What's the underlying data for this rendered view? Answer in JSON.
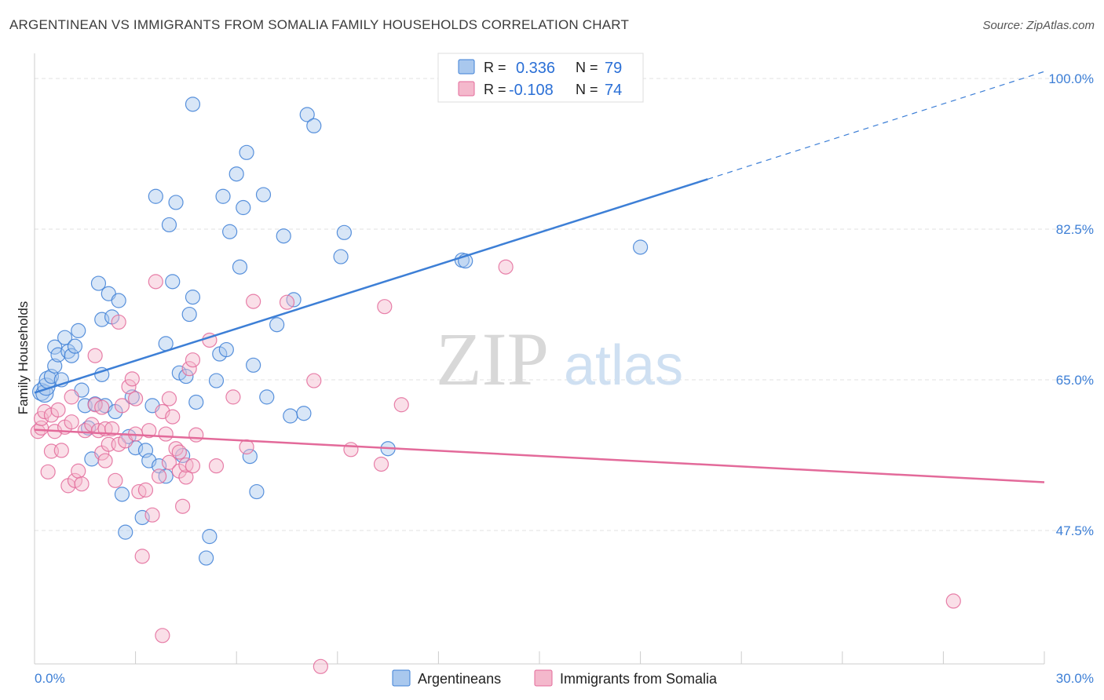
{
  "title": "ARGENTINEAN VS IMMIGRANTS FROM SOMALIA FAMILY HOUSEHOLDS CORRELATION CHART",
  "source": "Source: ZipAtlas.com",
  "colors": {
    "blue": "#3d7fd6",
    "blue_fill": "#a9c8ee",
    "pink": "#e36a9a",
    "pink_fill": "#f4b8cc",
    "grid": "#dddddd"
  },
  "chart_data": {
    "type": "scatter",
    "title": "ARGENTINEAN VS IMMIGRANTS FROM SOMALIA FAMILY HOUSEHOLDS CORRELATION CHART",
    "xlabel": "",
    "ylabel": "Family Households",
    "xlim": [
      0,
      30
    ],
    "ylim": [
      32,
      102
    ],
    "x_tick_labels": [
      "0.0%",
      "30.0%"
    ],
    "y_ticks": [
      47.5,
      65.0,
      82.5,
      100.0
    ],
    "y_tick_labels": [
      "47.5%",
      "65.0%",
      "82.5%",
      "100.0%"
    ],
    "legend": {
      "position": "top-center",
      "entries": [
        {
          "r_label": "R =",
          "r_value": "0.336",
          "n_label": "N =",
          "n_value": "79"
        },
        {
          "r_label": "R =",
          "r_value": "-0.108",
          "n_label": "N =",
          "n_value": "74"
        }
      ]
    },
    "bottom_legend": [
      "Argentineans",
      "Immigrants from Somalia"
    ],
    "watermark": {
      "zip": "ZIP",
      "atlas": "atlas"
    },
    "series": [
      {
        "name": "Argentineans",
        "color": "#3d7fd6",
        "trend": {
          "x0": 0,
          "y0": 63.5,
          "x1": 20.0,
          "y1": 88.3,
          "dash_x1": 30,
          "dash_y1": 100.8
        },
        "points": [
          [
            0.2,
            63.6
          ],
          [
            0.3,
            63.4
          ],
          [
            0.35,
            64.2
          ],
          [
            0.4,
            65.0
          ],
          [
            0.5,
            65.4
          ],
          [
            0.6,
            66.6
          ],
          [
            0.6,
            68.8
          ],
          [
            0.7,
            67.9
          ],
          [
            0.8,
            65.0
          ],
          [
            0.9,
            69.9
          ],
          [
            1.0,
            68.3
          ],
          [
            1.1,
            67.8
          ],
          [
            1.2,
            68.9
          ],
          [
            1.3,
            70.7
          ],
          [
            1.4,
            63.8
          ],
          [
            1.5,
            62.0
          ],
          [
            1.6,
            59.4
          ],
          [
            1.7,
            55.8
          ],
          [
            1.8,
            62.2
          ],
          [
            1.9,
            76.2
          ],
          [
            2.0,
            65.6
          ],
          [
            2.0,
            72.0
          ],
          [
            2.1,
            62.0
          ],
          [
            2.2,
            75.0
          ],
          [
            2.3,
            72.3
          ],
          [
            2.4,
            61.3
          ],
          [
            2.5,
            74.2
          ],
          [
            2.6,
            51.7
          ],
          [
            2.7,
            47.3
          ],
          [
            2.8,
            58.4
          ],
          [
            2.9,
            63.0
          ],
          [
            3.0,
            57.1
          ],
          [
            3.2,
            49.0
          ],
          [
            3.3,
            56.8
          ],
          [
            3.4,
            55.6
          ],
          [
            3.5,
            62.0
          ],
          [
            3.6,
            86.3
          ],
          [
            3.7,
            55.0
          ],
          [
            3.9,
            53.8
          ],
          [
            3.9,
            69.2
          ],
          [
            4.0,
            83.0
          ],
          [
            4.1,
            76.4
          ],
          [
            4.2,
            85.6
          ],
          [
            4.3,
            65.8
          ],
          [
            4.4,
            56.2
          ],
          [
            4.5,
            65.4
          ],
          [
            4.6,
            72.6
          ],
          [
            4.7,
            74.6
          ],
          [
            4.7,
            97.0
          ],
          [
            4.8,
            62.4
          ],
          [
            5.1,
            44.3
          ],
          [
            5.2,
            46.8
          ],
          [
            5.4,
            64.9
          ],
          [
            5.5,
            68.0
          ],
          [
            5.6,
            86.3
          ],
          [
            5.7,
            68.5
          ],
          [
            5.8,
            82.2
          ],
          [
            6.0,
            88.9
          ],
          [
            6.1,
            78.1
          ],
          [
            6.2,
            85.0
          ],
          [
            6.3,
            91.4
          ],
          [
            6.4,
            56.1
          ],
          [
            6.5,
            66.7
          ],
          [
            6.6,
            52.0
          ],
          [
            6.8,
            86.5
          ],
          [
            6.9,
            63.0
          ],
          [
            7.2,
            71.4
          ],
          [
            7.4,
            81.7
          ],
          [
            7.6,
            60.8
          ],
          [
            7.7,
            74.3
          ],
          [
            8.0,
            61.1
          ],
          [
            8.1,
            95.8
          ],
          [
            8.3,
            94.5
          ],
          [
            9.1,
            79.3
          ],
          [
            9.2,
            82.1
          ],
          [
            10.5,
            57.0
          ],
          [
            12.7,
            78.9
          ],
          [
            12.8,
            78.8
          ],
          [
            18.0,
            80.4
          ]
        ]
      },
      {
        "name": "Immigrants from Somalia",
        "color": "#e36a9a",
        "trend": {
          "x0": 0,
          "y0": 59.2,
          "x1": 30,
          "y1": 53.1
        },
        "points": [
          [
            0.1,
            59.0
          ],
          [
            0.2,
            59.4
          ],
          [
            0.2,
            60.5
          ],
          [
            0.3,
            61.3
          ],
          [
            0.4,
            54.3
          ],
          [
            0.5,
            60.9
          ],
          [
            0.5,
            56.7
          ],
          [
            0.6,
            59.0
          ],
          [
            0.7,
            61.5
          ],
          [
            0.8,
            56.8
          ],
          [
            0.9,
            59.5
          ],
          [
            1.0,
            52.7
          ],
          [
            1.1,
            63.0
          ],
          [
            1.1,
            60.1
          ],
          [
            1.2,
            53.3
          ],
          [
            1.3,
            54.4
          ],
          [
            1.4,
            52.9
          ],
          [
            1.5,
            59.1
          ],
          [
            1.7,
            59.8
          ],
          [
            1.8,
            67.8
          ],
          [
            1.8,
            62.1
          ],
          [
            1.9,
            59.1
          ],
          [
            2.0,
            61.8
          ],
          [
            2.0,
            56.5
          ],
          [
            2.1,
            59.3
          ],
          [
            2.1,
            55.6
          ],
          [
            2.2,
            57.5
          ],
          [
            2.3,
            59.3
          ],
          [
            2.4,
            53.3
          ],
          [
            2.5,
            71.7
          ],
          [
            2.5,
            57.5
          ],
          [
            2.6,
            62.0
          ],
          [
            2.7,
            57.9
          ],
          [
            2.8,
            64.2
          ],
          [
            2.9,
            65.1
          ],
          [
            3.0,
            62.8
          ],
          [
            3.1,
            52.0
          ],
          [
            3.2,
            44.5
          ],
          [
            3.3,
            52.2
          ],
          [
            3.4,
            59.1
          ],
          [
            3.5,
            49.3
          ],
          [
            3.6,
            76.4
          ],
          [
            3.7,
            53.8
          ],
          [
            3.8,
            61.3
          ],
          [
            3.8,
            35.3
          ],
          [
            3.9,
            58.7
          ],
          [
            4.0,
            62.8
          ],
          [
            4.0,
            55.4
          ],
          [
            4.1,
            60.7
          ],
          [
            4.2,
            57.0
          ],
          [
            4.3,
            54.4
          ],
          [
            4.3,
            56.6
          ],
          [
            4.4,
            50.3
          ],
          [
            4.5,
            53.7
          ],
          [
            4.5,
            55.1
          ],
          [
            4.6,
            66.3
          ],
          [
            4.7,
            67.3
          ],
          [
            4.8,
            58.6
          ],
          [
            5.2,
            69.6
          ],
          [
            5.4,
            55.0
          ],
          [
            5.9,
            63.0
          ],
          [
            6.3,
            57.2
          ],
          [
            6.5,
            74.1
          ],
          [
            7.5,
            74.0
          ],
          [
            8.3,
            64.9
          ],
          [
            8.5,
            31.7
          ],
          [
            9.4,
            56.9
          ],
          [
            10.3,
            55.2
          ],
          [
            10.4,
            73.5
          ],
          [
            10.9,
            62.1
          ],
          [
            14.0,
            78.1
          ],
          [
            27.3,
            39.3
          ],
          [
            4.7,
            55.0
          ],
          [
            3.0,
            58.7
          ]
        ]
      }
    ]
  }
}
